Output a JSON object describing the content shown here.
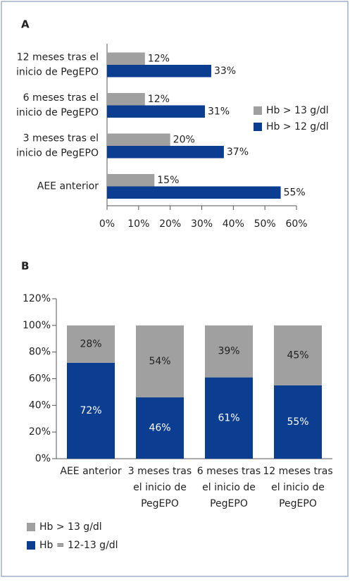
{
  "chart_data": [
    {
      "type": "hbar",
      "panel": "A",
      "categories": [
        [
          "12 meses tras el",
          "inicio de PegEPO"
        ],
        [
          "6 meses tras el",
          "inicio de PegEPO"
        ],
        [
          "3 meses tras el",
          "inicio de PegEPO"
        ],
        [
          "AEE anterior"
        ]
      ],
      "series": [
        {
          "name": "Hb > 13 g/dl",
          "color": "#a0a0a0",
          "values": [
            12,
            12,
            20,
            15
          ],
          "value_labels": [
            "12%",
            "12%",
            "20%",
            "15%"
          ]
        },
        {
          "name": "Hb > 12 g/dl",
          "color": "#0b3d91",
          "values": [
            33,
            31,
            37,
            55
          ],
          "value_labels": [
            "33%",
            "31%",
            "37%",
            "55%"
          ]
        }
      ],
      "xlim": [
        0,
        60
      ],
      "xticks": [
        {
          "value": 0,
          "label": "0%"
        },
        {
          "value": 10,
          "label": "10%"
        },
        {
          "value": 20,
          "label": "20%"
        },
        {
          "value": 30,
          "label": "30%"
        },
        {
          "value": 40,
          "label": "40%"
        },
        {
          "value": 50,
          "label": "50%"
        },
        {
          "value": 60,
          "label": "60%"
        }
      ],
      "legend": "right"
    },
    {
      "type": "stacked_bar",
      "panel": "B",
      "categories": [
        [
          "AEE anterior"
        ],
        [
          "3 meses tras",
          "el inicio de",
          "PegEPO"
        ],
        [
          "6 meses tras",
          "el inicio de",
          "PegEPO"
        ],
        [
          "12 meses tras",
          "el inicio de",
          "PegEPO"
        ]
      ],
      "series": [
        {
          "name": "Hb > 13 g/dl",
          "color": "#a0a0a0",
          "values": [
            28,
            54,
            39,
            45
          ],
          "value_labels": [
            "28%",
            "54%",
            "39%",
            "45%"
          ]
        },
        {
          "name": "Hb = 12-13 g/dl",
          "color": "#0b3d91",
          "values": [
            72,
            46,
            61,
            55
          ],
          "value_labels": [
            "72%",
            "46%",
            "61%",
            "55%"
          ]
        }
      ],
      "ylim": [
        0,
        120
      ],
      "yticks": [
        {
          "value": 0,
          "label": "0%"
        },
        {
          "value": 20,
          "label": "20%"
        },
        {
          "value": 40,
          "label": "40%"
        },
        {
          "value": 60,
          "label": "60%"
        },
        {
          "value": 80,
          "label": "80%"
        },
        {
          "value": 100,
          "label": "100%"
        },
        {
          "value": 120,
          "label": "120%"
        }
      ],
      "legend": "bottom"
    }
  ]
}
